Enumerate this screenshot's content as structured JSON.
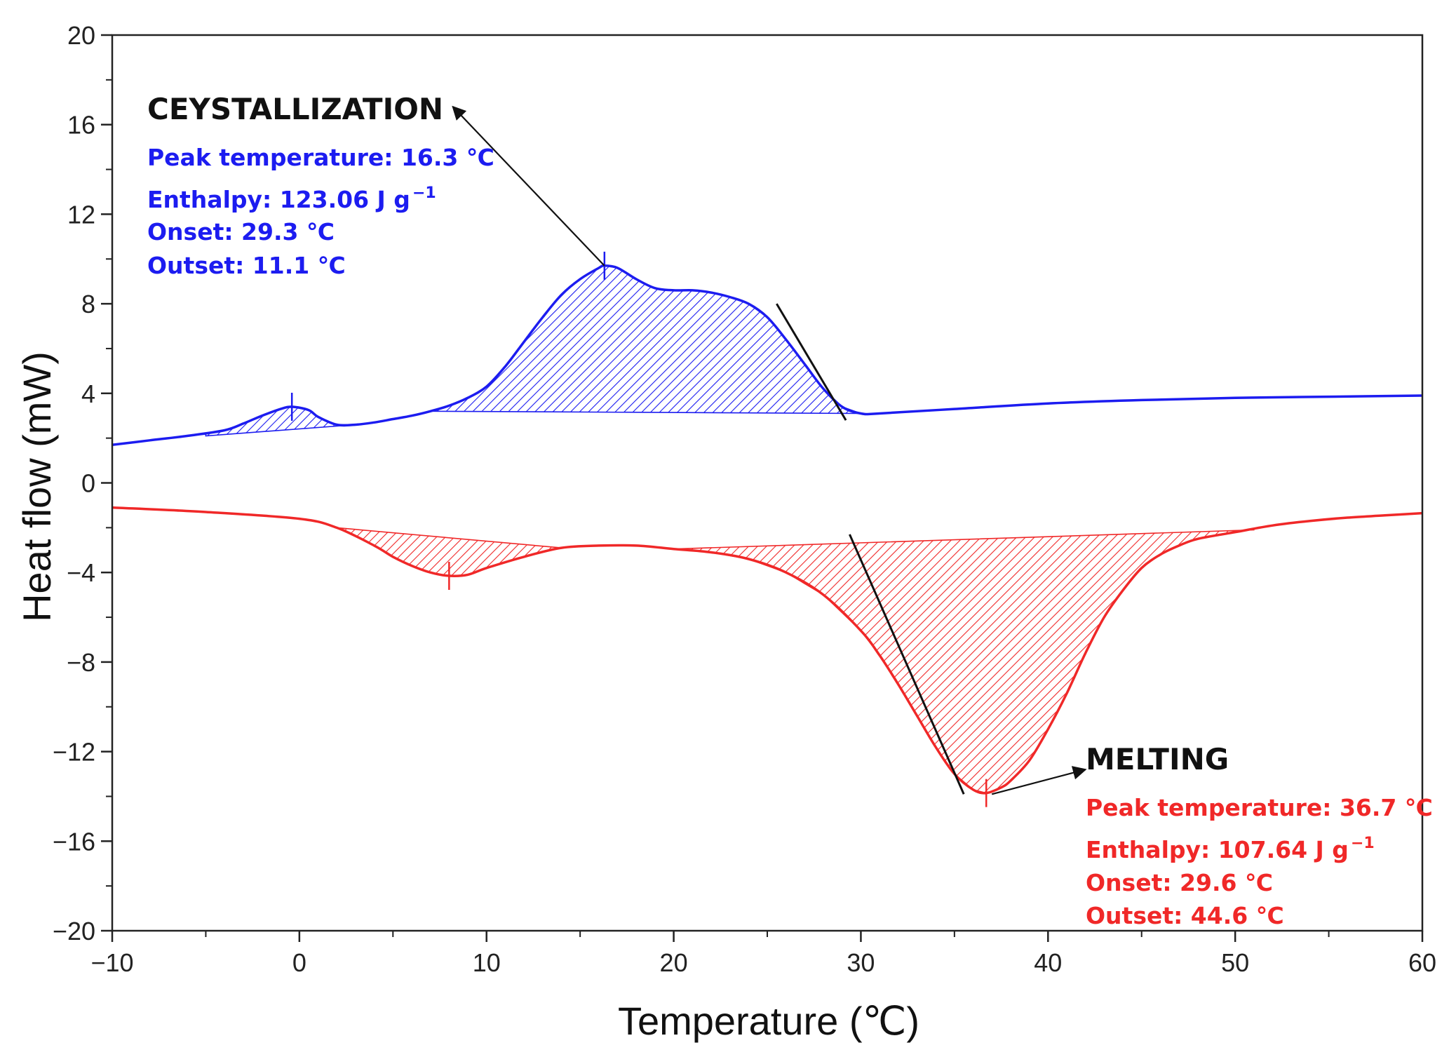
{
  "chart_data": {
    "type": "line",
    "title": "",
    "xlabel": "Temperature (℃)",
    "ylabel": "Heat flow (mW)",
    "xlim": [
      -10,
      60
    ],
    "ylim": [
      -20,
      20
    ],
    "grid": false,
    "x_ticks": [
      -10,
      0,
      10,
      20,
      30,
      40,
      50,
      60
    ],
    "x_tick_labels": [
      "−10",
      "0",
      "10",
      "20",
      "30",
      "40",
      "50",
      "60"
    ],
    "y_ticks": [
      -20,
      -16,
      -12,
      -8,
      -4,
      0,
      4,
      8,
      12,
      16,
      20
    ],
    "y_tick_labels": [
      "−20",
      "−16",
      "−12",
      "−8",
      "−4",
      "0",
      "4",
      "8",
      "12",
      "16",
      "20"
    ],
    "colors": {
      "crystallization": "#1c1cf0",
      "melting": "#f02828",
      "annotation": "#111111"
    },
    "series": [
      {
        "name": "crystallization",
        "color": "#1c1cf0",
        "x": [
          -10,
          -8,
          -6,
          -4,
          -3,
          -2,
          -1,
          -0.4,
          0.5,
          1,
          2,
          3,
          4,
          5,
          6,
          7,
          8,
          9,
          10,
          11,
          12,
          13,
          14,
          15,
          16,
          16.3,
          17,
          18,
          19,
          20,
          21,
          22,
          23,
          24,
          25,
          26,
          27,
          28,
          29,
          30,
          31,
          35,
          40,
          45,
          50,
          55,
          60
        ],
        "y": [
          1.7,
          1.9,
          2.1,
          2.35,
          2.65,
          3.0,
          3.3,
          3.4,
          3.25,
          2.95,
          2.6,
          2.6,
          2.7,
          2.85,
          3.0,
          3.2,
          3.45,
          3.8,
          4.3,
          5.2,
          6.3,
          7.4,
          8.4,
          9.1,
          9.6,
          9.7,
          9.6,
          9.1,
          8.7,
          8.6,
          8.6,
          8.5,
          8.3,
          8.0,
          7.4,
          6.4,
          5.3,
          4.2,
          3.4,
          3.1,
          3.1,
          3.3,
          3.55,
          3.7,
          3.8,
          3.85,
          3.9
        ]
      },
      {
        "name": "melting",
        "color": "#f02828",
        "x": [
          -10,
          -5,
          0,
          2,
          4,
          5,
          6,
          7,
          8,
          9,
          10,
          12,
          14,
          16,
          18,
          20,
          22,
          24,
          26,
          28,
          30,
          31,
          32,
          33,
          34,
          35,
          36,
          36.7,
          37.5,
          38,
          39,
          40,
          41,
          42,
          43,
          44,
          45,
          46,
          47,
          48,
          50,
          52,
          54,
          56,
          58,
          60
        ],
        "y": [
          -1.1,
          -1.3,
          -1.6,
          -2.0,
          -2.8,
          -3.3,
          -3.7,
          -4.0,
          -4.15,
          -4.1,
          -3.8,
          -3.3,
          -2.9,
          -2.8,
          -2.8,
          -2.95,
          -3.1,
          -3.4,
          -4.0,
          -5.0,
          -6.6,
          -7.7,
          -9.0,
          -10.4,
          -11.8,
          -13.0,
          -13.7,
          -13.85,
          -13.6,
          -13.3,
          -12.4,
          -11.0,
          -9.4,
          -7.6,
          -6.0,
          -4.8,
          -3.8,
          -3.2,
          -2.8,
          -2.5,
          -2.2,
          -1.9,
          -1.7,
          -1.55,
          -1.45,
          -1.35
        ]
      }
    ],
    "shaded_regions": [
      {
        "series": "crystallization",
        "from": -5,
        "to": 3,
        "baseline": [
          [
            -5,
            2.1
          ],
          [
            3,
            2.6
          ]
        ]
      },
      {
        "series": "crystallization",
        "from": 7,
        "to": 30,
        "baseline": [
          [
            7,
            3.2
          ],
          [
            30,
            3.1
          ]
        ]
      },
      {
        "series": "melting",
        "from": 2,
        "to": 14,
        "baseline": [
          [
            2,
            -2.0
          ],
          [
            14,
            -2.9
          ]
        ]
      },
      {
        "series": "melting",
        "from": 20,
        "to": 51,
        "baseline": [
          [
            20,
            -2.95
          ],
          [
            51,
            -2.1
          ]
        ]
      }
    ],
    "peak_markers": [
      {
        "series": "crystallization",
        "x": -0.4,
        "y": 3.4
      },
      {
        "series": "crystallization",
        "x": 16.3,
        "y": 9.7
      },
      {
        "series": "melting",
        "x": 8.0,
        "y": -4.15
      },
      {
        "series": "melting",
        "x": 36.7,
        "y": -13.85
      }
    ],
    "tangent_lines": [
      {
        "from": [
          25.5,
          8.0
        ],
        "to": [
          29.2,
          2.8
        ]
      },
      {
        "from": [
          29.4,
          -2.3
        ],
        "to": [
          35.5,
          -13.9
        ]
      }
    ],
    "arrows": [
      {
        "from": [
          16.3,
          9.7
        ],
        "to": [
          8.2,
          16.8
        ]
      },
      {
        "from": [
          37.0,
          -13.9
        ],
        "to": [
          42.0,
          -12.8
        ]
      }
    ],
    "annotations": {
      "crystallization": {
        "title": "CEYSTALLIZATION",
        "peak": "Peak temperature: 16.3 ℃",
        "enthalpy": "Enthalpy: 123.06 J g",
        "enthalpy_sup": "−1",
        "onset": "Onset: 29.3 ℃",
        "outset": "Outset: 11.1 ℃"
      },
      "melting": {
        "title": "MELTING",
        "peak": "Peak temperature: 36.7 ℃",
        "enthalpy": "Enthalpy: 107.64 J g",
        "enthalpy_sup": "−1",
        "onset": "Onset: 29.6 ℃",
        "outset": "Outset: 44.6 ℃"
      }
    }
  }
}
